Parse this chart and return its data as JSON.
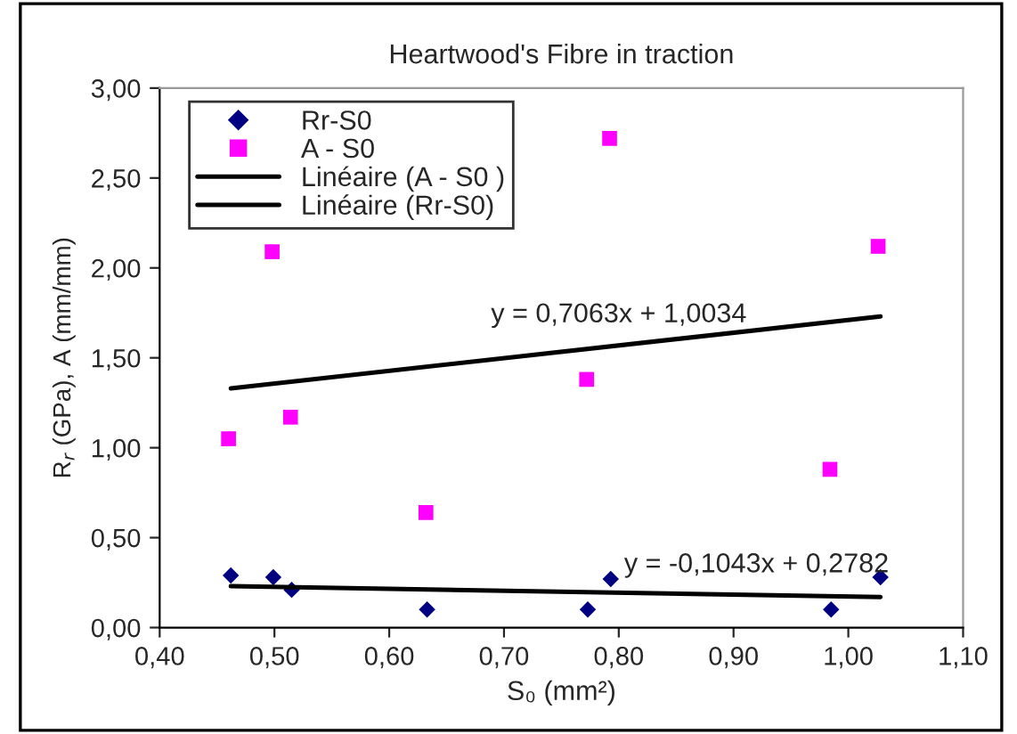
{
  "chart_data": {
    "type": "scatter",
    "title": "Heartwood's Fibre in traction",
    "xlabel": "S₀ (mm²)",
    "ylabel": "R$_{r}$ (GPa), A (mm/mm)",
    "series": [
      {
        "name": "Rr-S0",
        "marker": "diamond",
        "color": "#000080",
        "x": [
          0.462,
          0.499,
          0.515,
          0.633,
          0.773,
          0.793,
          0.985,
          1.028
        ],
        "values": [
          0.29,
          0.28,
          0.21,
          0.1,
          0.1,
          0.27,
          0.1,
          0.28
        ]
      },
      {
        "name": "A - S0",
        "marker": "square",
        "color": "#ff00ff",
        "x": [
          0.46,
          0.498,
          0.514,
          0.632,
          0.772,
          0.792,
          0.984,
          1.026
        ],
        "values": [
          1.05,
          2.09,
          1.17,
          0.64,
          1.38,
          2.72,
          0.88,
          2.12
        ]
      },
      {
        "name": "Linéaire (A - S0 )",
        "type": "line",
        "marker": "none",
        "line_style": "solid",
        "color": "#000000",
        "x": [
          0.462,
          1.028
        ],
        "values": [
          1.33,
          1.73
        ]
      },
      {
        "name": "Linéaire (Rr-S0)",
        "type": "line",
        "marker": "none",
        "line_style": "solid",
        "color": "#000000",
        "x": [
          0.462,
          1.028
        ],
        "values": [
          0.23,
          0.17
        ]
      }
    ],
    "annotations": [
      {
        "text": "y = 0,7063x + 1,0034",
        "x": 0.8,
        "y": 1.57
      },
      {
        "text": "y = -0,1043x + 0,2782",
        "x": 0.92,
        "y": 0.18
      }
    ],
    "xlim": [
      0.4,
      1.1
    ],
    "xticks": [
      {
        "value": 0.4,
        "label": "0,40"
      },
      {
        "value": 0.5,
        "label": "0,50"
      },
      {
        "value": 0.6,
        "label": "0,60"
      },
      {
        "value": 0.7,
        "label": "0,70"
      },
      {
        "value": 0.8,
        "label": "0,80"
      },
      {
        "value": 0.9,
        "label": "0,90"
      },
      {
        "value": 1.0,
        "label": "1,00"
      },
      {
        "value": 1.1,
        "label": "1,10"
      }
    ],
    "ylim": [
      0,
      3
    ],
    "yticks": [
      {
        "value": 0,
        "label": "0,00"
      },
      {
        "value": 0.5,
        "label": "0,50"
      },
      {
        "value": 1.0,
        "label": "1,00"
      },
      {
        "value": 1.5,
        "label": "1,50"
      },
      {
        "value": 2.0,
        "label": "2,00"
      },
      {
        "value": 2.5,
        "label": "2,50"
      },
      {
        "value": 3.0,
        "label": "3,00"
      }
    ],
    "grid": false,
    "legend": "top left"
  }
}
